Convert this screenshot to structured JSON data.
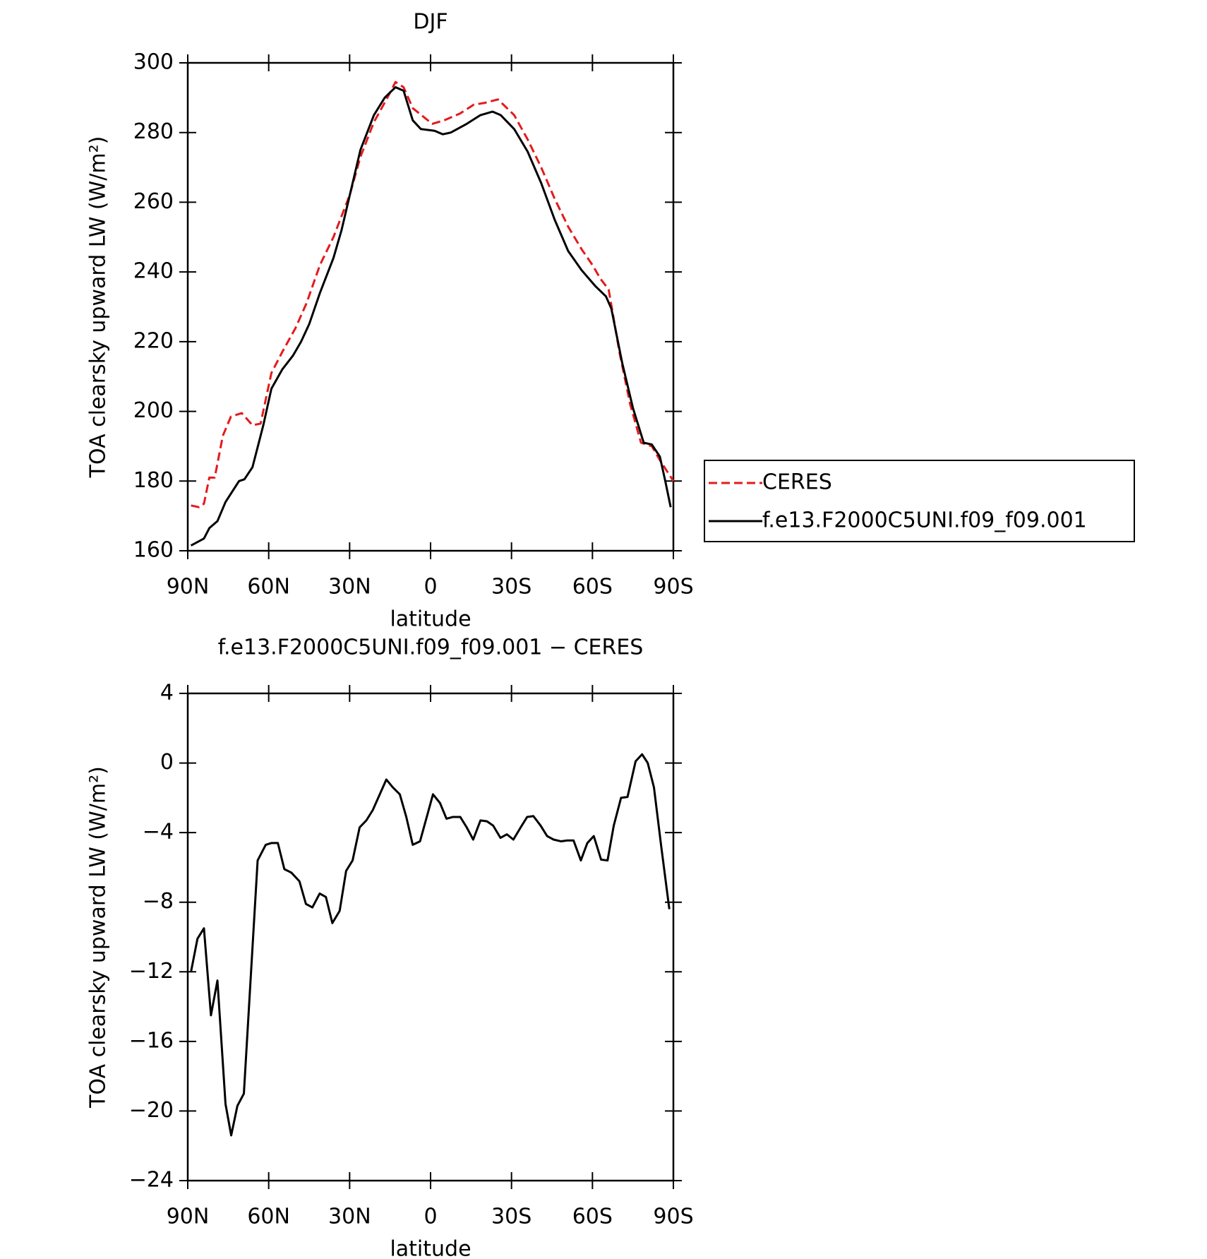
{
  "chart_data": [
    {
      "type": "line",
      "title": "DJF",
      "xlabel": "latitude",
      "ylabel": "TOA clearsky upward LW (W/m²)",
      "xlim": [
        90,
        -90
      ],
      "xticks": [
        {
          "value": 90,
          "label": "90N"
        },
        {
          "value": 60,
          "label": "60N"
        },
        {
          "value": 30,
          "label": "30N"
        },
        0,
        {
          "value": -30,
          "label": "30S"
        },
        {
          "value": -60,
          "label": "60S"
        },
        {
          "value": -90,
          "label": "90S"
        }
      ],
      "ylim": [
        160,
        300
      ],
      "yticks": [
        160,
        180,
        200,
        220,
        240,
        260,
        280,
        300
      ],
      "legend": "outside-right",
      "series": [
        {
          "name": "CERES",
          "color": "#e41a1c",
          "style": "dashed",
          "x": [
            88.8,
            85.8,
            84,
            82,
            80,
            77,
            74,
            70,
            66,
            63,
            59,
            55,
            50,
            46,
            41,
            36,
            30,
            26,
            21,
            16,
            13,
            10,
            6.6,
            -0.6,
            -5,
            -11,
            -16,
            -20,
            -25,
            -31,
            -36,
            -41,
            -46,
            -51,
            -56,
            -60,
            -63,
            -66,
            -70,
            -74,
            -78,
            -82,
            -85,
            -90
          ],
          "values": [
            173,
            172.5,
            173.5,
            181,
            181,
            193,
            198.5,
            199.5,
            196,
            196.5,
            211,
            217,
            224,
            231,
            242,
            250,
            262,
            273,
            283,
            290,
            294.5,
            293,
            287,
            282.5,
            283.5,
            285.5,
            288,
            288.5,
            289.5,
            285,
            278,
            270,
            261,
            253,
            246.5,
            242,
            238,
            235,
            217,
            202,
            191,
            190,
            186,
            180
          ]
        },
        {
          "name": "f.e13.F2000C5UNI.f09_f09.001",
          "color": "#000000",
          "style": "solid",
          "x": [
            88.8,
            84,
            82,
            79,
            76,
            71,
            69,
            66,
            62,
            59,
            55,
            51,
            48,
            45,
            41,
            36,
            33,
            26,
            21,
            17,
            13,
            10,
            6.6,
            3.6,
            -1.5,
            -4.5,
            -7.5,
            -13.4,
            -18.5,
            -23,
            -26,
            -31,
            -36,
            -41,
            -46,
            -51,
            -56,
            -61,
            -65,
            -67,
            -71,
            -75,
            -79,
            -82,
            -85,
            -87,
            -89
          ],
          "values": [
            161.5,
            163.5,
            166.5,
            168.5,
            174,
            180,
            180.5,
            184,
            196,
            206.5,
            212,
            216,
            220,
            225,
            234,
            244,
            252,
            275,
            285,
            290,
            293,
            292,
            283.5,
            281,
            280.5,
            279.5,
            280,
            282.5,
            285,
            286,
            285,
            281,
            274.5,
            265.5,
            255,
            246,
            240.5,
            236,
            233,
            229.5,
            214,
            201,
            191,
            190.5,
            187,
            180,
            172.5
          ]
        }
      ]
    },
    {
      "type": "line",
      "title": "f.e13.F2000C5UNI.f09_f09.001 − CERES",
      "xlabel": "latitude",
      "ylabel": "TOA clearsky upward LW (W/m²)",
      "xlim": [
        90,
        -90
      ],
      "xticks": [
        {
          "value": 90,
          "label": "90N"
        },
        {
          "value": 60,
          "label": "60N"
        },
        {
          "value": 30,
          "label": "30N"
        },
        0,
        {
          "value": -30,
          "label": "30S"
        },
        {
          "value": -60,
          "label": "60S"
        },
        {
          "value": -90,
          "label": "90S"
        }
      ],
      "ylim": [
        -24,
        4
      ],
      "yticks": [
        {
          "value": -24,
          "label": "−24"
        },
        {
          "value": -20,
          "label": "−20"
        },
        {
          "value": -16,
          "label": "−16"
        },
        {
          "value": -12,
          "label": "−12"
        },
        {
          "value": -8,
          "label": "−8"
        },
        {
          "value": -4,
          "label": "−4"
        },
        0,
        4
      ],
      "series": [
        {
          "color": "#000000",
          "style": "solid",
          "x": [
            88.8,
            86.4,
            84,
            81.4,
            79,
            76,
            73.9,
            71.6,
            69.2,
            64.1,
            61.1,
            59,
            56.6,
            54.2,
            51.6,
            48.6,
            46.2,
            43.8,
            41.1,
            38.8,
            36.4,
            33.7,
            31.3,
            28.9,
            26.3,
            23.8,
            21.4,
            16.4,
            14,
            11.4,
            9,
            6.6,
            3.9,
            -0.9,
            -3.5,
            -5.9,
            -8.3,
            -11,
            -13.4,
            -15.8,
            -18.5,
            -20.9,
            -23.2,
            -25.9,
            -28.3,
            -30.7,
            -33.4,
            -35.8,
            -38.1,
            -40.8,
            -43.2,
            -45.6,
            -48.3,
            -50.7,
            -53,
            -55.7,
            -58.1,
            -60.5,
            -63.2,
            -65.6,
            -67.9,
            -70.6,
            -73,
            -76,
            -78.4,
            -80.5,
            -82.8,
            -85.5,
            -88.5
          ],
          "values": [
            -12,
            -10.1,
            -9.5,
            -14.5,
            -12.5,
            -19.6,
            -21.4,
            -19.7,
            -19,
            -5.6,
            -4.7,
            -4.6,
            -4.6,
            -6.1,
            -6.3,
            -6.8,
            -8.1,
            -8.3,
            -7.5,
            -7.7,
            -9.2,
            -8.5,
            -6.2,
            -5.6,
            -3.7,
            -3.3,
            -2.7,
            -0.95,
            -1.4,
            -1.8,
            -3.1,
            -4.7,
            -4.5,
            -1.8,
            -2.3,
            -3.2,
            -3.1,
            -3.1,
            -3.7,
            -4.4,
            -3.3,
            -3.35,
            -3.6,
            -4.3,
            -4.1,
            -4.4,
            -3.7,
            -3.1,
            -3.05,
            -3.6,
            -4.2,
            -4.4,
            -4.5,
            -4.45,
            -4.45,
            -5.6,
            -4.6,
            -4.2,
            -5.55,
            -5.6,
            -3.6,
            -2,
            -1.95,
            0.1,
            0.5,
            0,
            -1.4,
            -4.8,
            -8.4
          ]
        }
      ]
    }
  ]
}
